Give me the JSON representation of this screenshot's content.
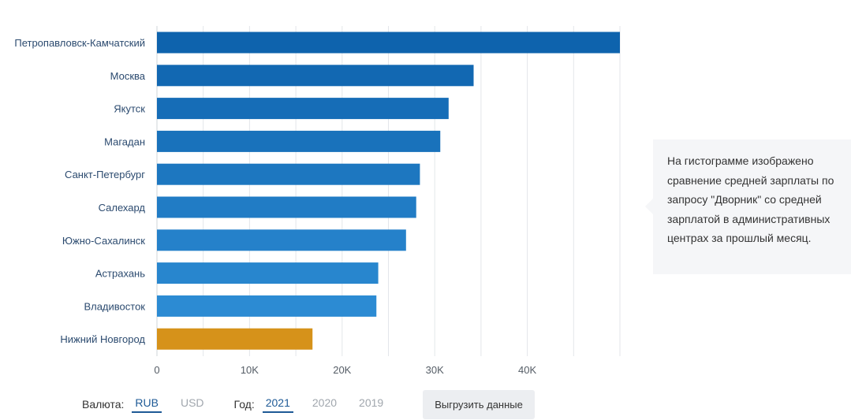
{
  "chart_data": {
    "type": "bar",
    "orientation": "horizontal",
    "categories": [
      "Петропавловск-Камчатский",
      "Москва",
      "Якутск",
      "Магадан",
      "Санкт-Петербург",
      "Салехард",
      "Южно-Сахалинск",
      "Астрахань",
      "Владивосток",
      "Нижний Новгород"
    ],
    "values": [
      50000,
      34200,
      31500,
      30600,
      28400,
      28000,
      26900,
      23900,
      23700,
      16800
    ],
    "highlight_index": 9,
    "xlim": [
      0,
      50000
    ],
    "x_ticks": [
      0,
      10000,
      20000,
      30000,
      40000
    ],
    "x_tick_labels": [
      "0",
      "10K",
      "20K",
      "30K",
      "40K"
    ],
    "grid": true,
    "colors": {
      "bar_gradient_start": "#0e63ad",
      "bar_gradient_end": "#2c8bd3",
      "highlight": "#d6921a"
    }
  },
  "note": {
    "text": "На гистограмме изображено сравнение средней зарплаты по запросу \"Дворник\" со средней зарплатой в административных центрах за прошлый месяц."
  },
  "controls": {
    "currency_label": "Валюта:",
    "currencies": [
      {
        "label": "RUB",
        "active": true
      },
      {
        "label": "USD",
        "active": false
      }
    ],
    "year_label": "Год:",
    "years": [
      {
        "label": "2021",
        "active": true
      },
      {
        "label": "2020",
        "active": false
      },
      {
        "label": "2019",
        "active": false
      }
    ],
    "export_label": "Выгрузить данные"
  }
}
